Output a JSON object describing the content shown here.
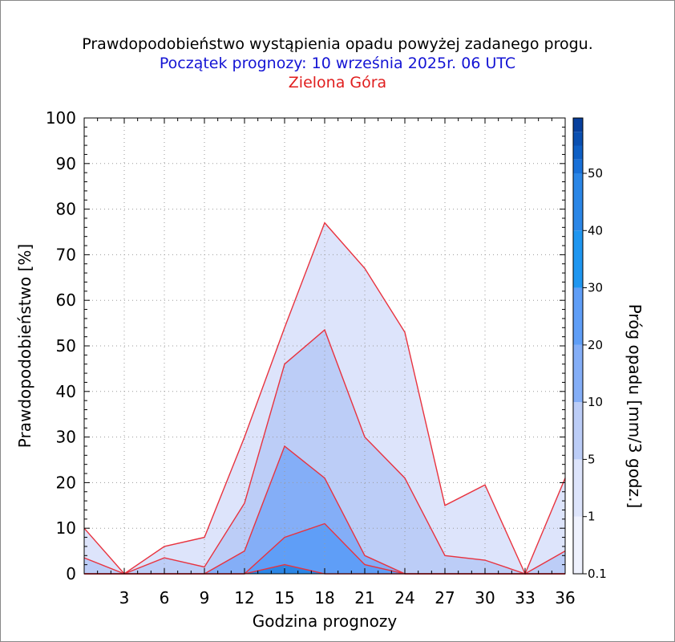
{
  "header": {
    "title": "Prawdopodobieństwo wystąpienia opadu powyżej zadanego progu.",
    "forecast_start": "Początek prognozy: 10 września 2025r. 06 UTC",
    "location": "Zielona Góra"
  },
  "chart_data": {
    "type": "area",
    "xlabel": "Godzina prognozy",
    "ylabel": "Prawdopodobieństwo [%]",
    "colorbar_label": "Próg opadu [mm/3 godz.]",
    "xlim": [
      0,
      36
    ],
    "ylim": [
      0,
      100
    ],
    "x_ticks": [
      3,
      6,
      9,
      12,
      15,
      18,
      21,
      24,
      27,
      30,
      33,
      36
    ],
    "y_ticks": [
      0,
      10,
      20,
      30,
      40,
      50,
      60,
      70,
      80,
      90,
      100
    ],
    "grid": true,
    "line_color": "#e8333f",
    "x": [
      0,
      3,
      6,
      9,
      12,
      15,
      18,
      21,
      24,
      27,
      30,
      33,
      36
    ],
    "series": [
      {
        "name": "0.1",
        "color": "#dde4fb",
        "values": [
          10,
          0,
          6,
          8,
          30,
          54,
          77,
          67,
          53,
          15,
          19.5,
          0,
          21
        ]
      },
      {
        "name": "1",
        "color": "#bccdf7",
        "values": [
          3.5,
          0,
          3.5,
          1.5,
          15.5,
          46,
          53.5,
          30,
          21,
          4,
          3,
          0,
          5
        ]
      },
      {
        "name": "5",
        "color": "#84aef7",
        "values": [
          0,
          0,
          0,
          0,
          5,
          28,
          21,
          4,
          0,
          0,
          0,
          0,
          0
        ]
      },
      {
        "name": "10",
        "color": "#5f9ef7",
        "values": [
          0,
          0,
          0,
          0,
          0,
          8,
          11,
          2,
          0,
          0,
          0,
          0,
          0
        ]
      },
      {
        "name": "20",
        "color": "#2b86e6",
        "values": [
          0,
          0,
          0,
          0,
          0,
          2,
          0,
          0,
          0,
          0,
          0,
          0,
          0
        ]
      }
    ],
    "colorbar": {
      "labels": [
        "0.1",
        "1",
        "5",
        "10",
        "20",
        "30",
        "40",
        "50"
      ],
      "colors": [
        "#eef1fd",
        "#dde4fb",
        "#bccdf7",
        "#84aef7",
        "#5f9ef7",
        "#1f96f0",
        "#2b86e6",
        "#1870d8",
        "#0f5fc4",
        "#0a4fb0",
        "#073f9c"
      ]
    }
  }
}
